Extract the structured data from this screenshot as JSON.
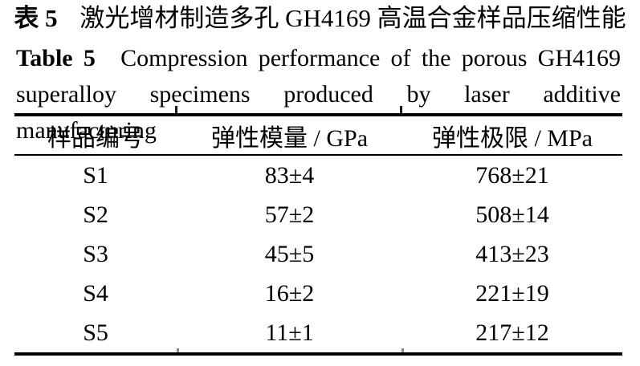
{
  "titles": {
    "cn_label": "表 5",
    "cn_text": "激光增材制造多孔 GH4169 高温合金样品压缩性能",
    "en_label": "Table 5",
    "en_line1": "Compression performance of the porous GH4169",
    "en_line2": "superalloy specimens produced by laser additive manufacturing"
  },
  "table": {
    "columns": [
      "样品编号",
      "弹性模量 / GPa",
      "弹性极限 / MPa"
    ],
    "rows": [
      [
        "S1",
        "83±4",
        "768±21"
      ],
      [
        "S2",
        "57±2",
        "508±14"
      ],
      [
        "S3",
        "45±5",
        "413±23"
      ],
      [
        "S4",
        "16±2",
        "221±19"
      ],
      [
        "S5",
        "11±1",
        "217±12"
      ]
    ]
  },
  "chart_data": {
    "type": "table",
    "title": "表 5 激光增材制造多孔 GH4169 高温合金样品压缩性能 / Table 5 Compression performance of the porous GH4169 superalloy specimens produced by laser additive manufacturing",
    "columns": [
      "样品编号",
      "弹性模量 / GPa",
      "弹性极限 / MPa"
    ],
    "rows": [
      {
        "sample": "S1",
        "elastic_modulus_gpa": "83±4",
        "elastic_limit_mpa": "768±21"
      },
      {
        "sample": "S2",
        "elastic_modulus_gpa": "57±2",
        "elastic_limit_mpa": "508±14"
      },
      {
        "sample": "S3",
        "elastic_modulus_gpa": "45±5",
        "elastic_limit_mpa": "413±23"
      },
      {
        "sample": "S4",
        "elastic_modulus_gpa": "16±2",
        "elastic_limit_mpa": "221±19"
      },
      {
        "sample": "S5",
        "elastic_modulus_gpa": "11±1",
        "elastic_limit_mpa": "217±12"
      }
    ]
  },
  "colors": {
    "text": "#000000",
    "background": "#ffffff",
    "rule": "#000000"
  }
}
